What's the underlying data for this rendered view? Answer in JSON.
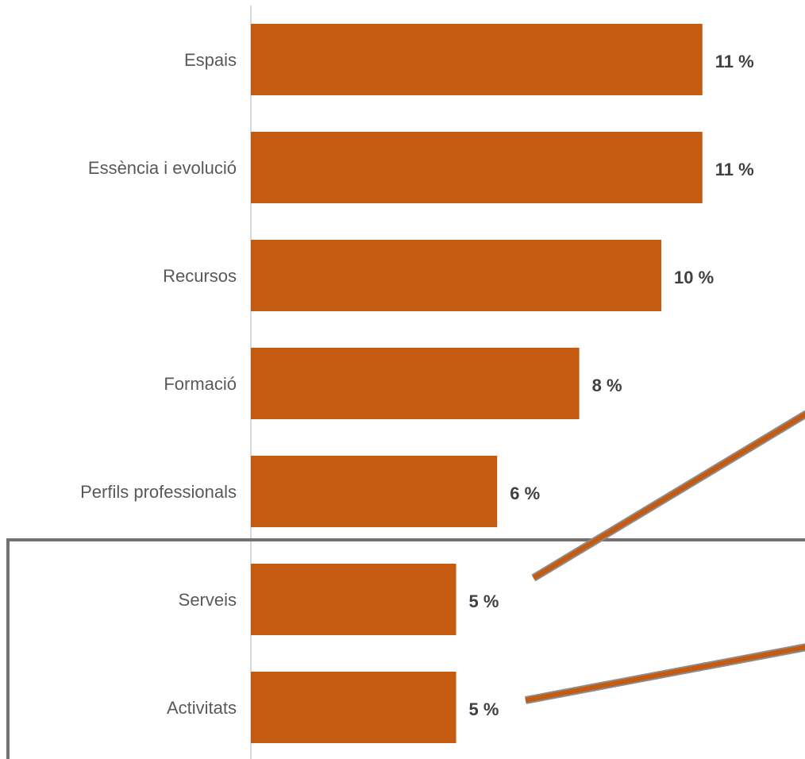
{
  "chart_data": {
    "type": "bar",
    "orientation": "horizontal",
    "categories": [
      "Espais",
      "Essència i evolució",
      "Recursos",
      "Formació",
      "Perfils professionals",
      "Serveis",
      "Activitats"
    ],
    "values": [
      11,
      11,
      10,
      8,
      6,
      5,
      5
    ],
    "value_labels": [
      "11 %",
      "11 %",
      "10 %",
      "8 %",
      "6 %",
      "5 %",
      "5 %"
    ],
    "color": "#c55a11",
    "xlim": [
      0,
      13.5
    ]
  }
}
